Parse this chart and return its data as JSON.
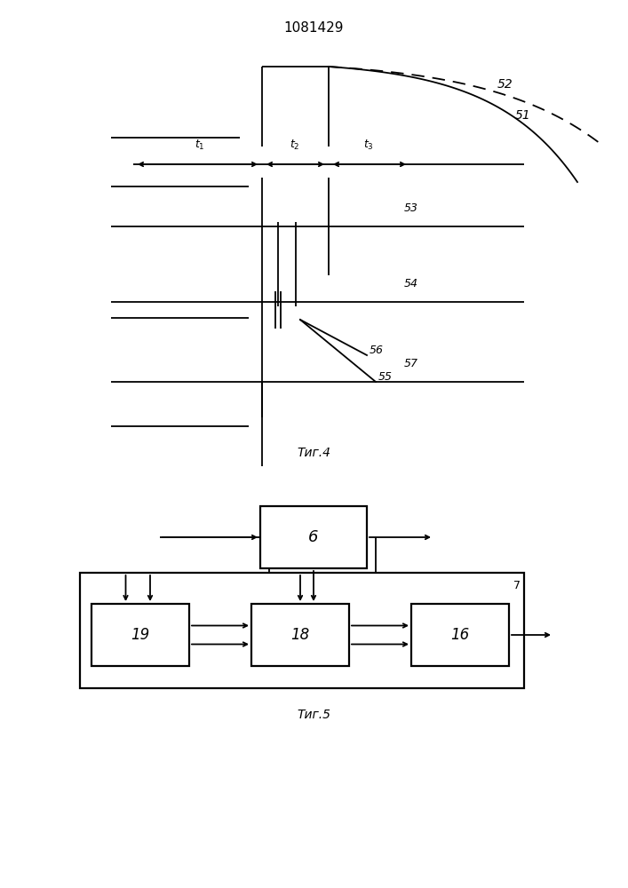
{
  "title": "1081429",
  "bg_color": "#ffffff",
  "line_color": "#000000",
  "fig4_caption": "Τиг.4",
  "fig5_caption": "Τиг.5"
}
